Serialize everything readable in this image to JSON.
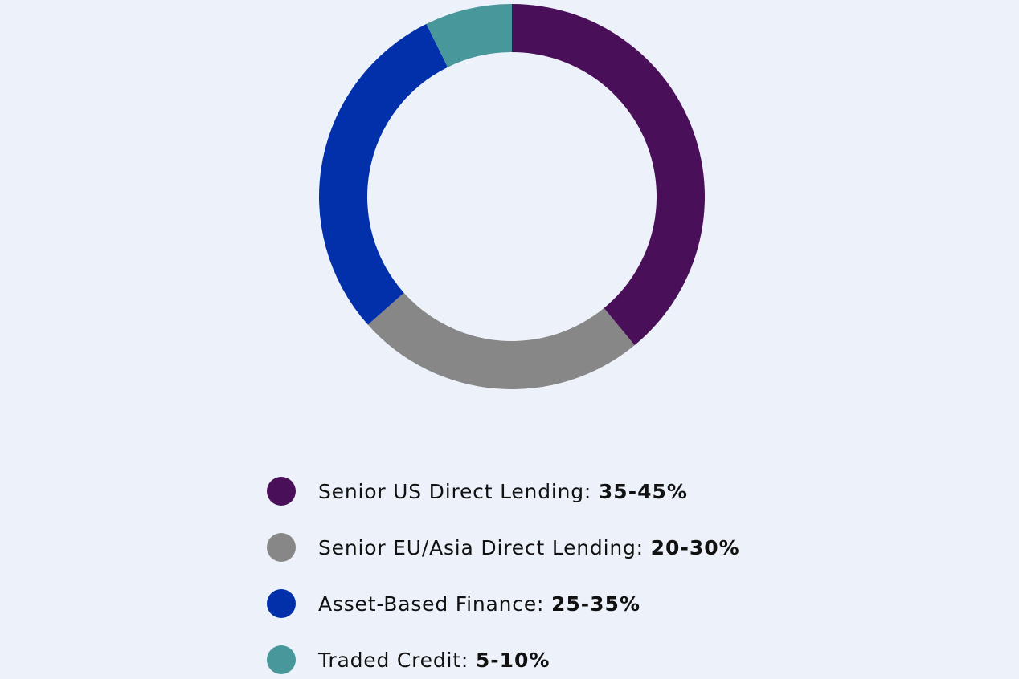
{
  "chart_data": {
    "type": "pie",
    "donut": true,
    "legend_position": "bottom",
    "slices": [
      {
        "label": "Senior US Direct Lending",
        "range": "35-45%",
        "value": 40,
        "color": "#4a0f59"
      },
      {
        "label": "Senior EU/Asia Direct Lending",
        "range": "20-30%",
        "value": 25,
        "color": "#878787"
      },
      {
        "label": "Asset-Based Finance",
        "range": "25-35%",
        "value": 30,
        "color": "#0230aa"
      },
      {
        "label": "Traded Credit",
        "range": "5-10%",
        "value": 7.5,
        "color": "#47979b"
      }
    ]
  },
  "colors": {
    "background": "#edf2fa"
  }
}
